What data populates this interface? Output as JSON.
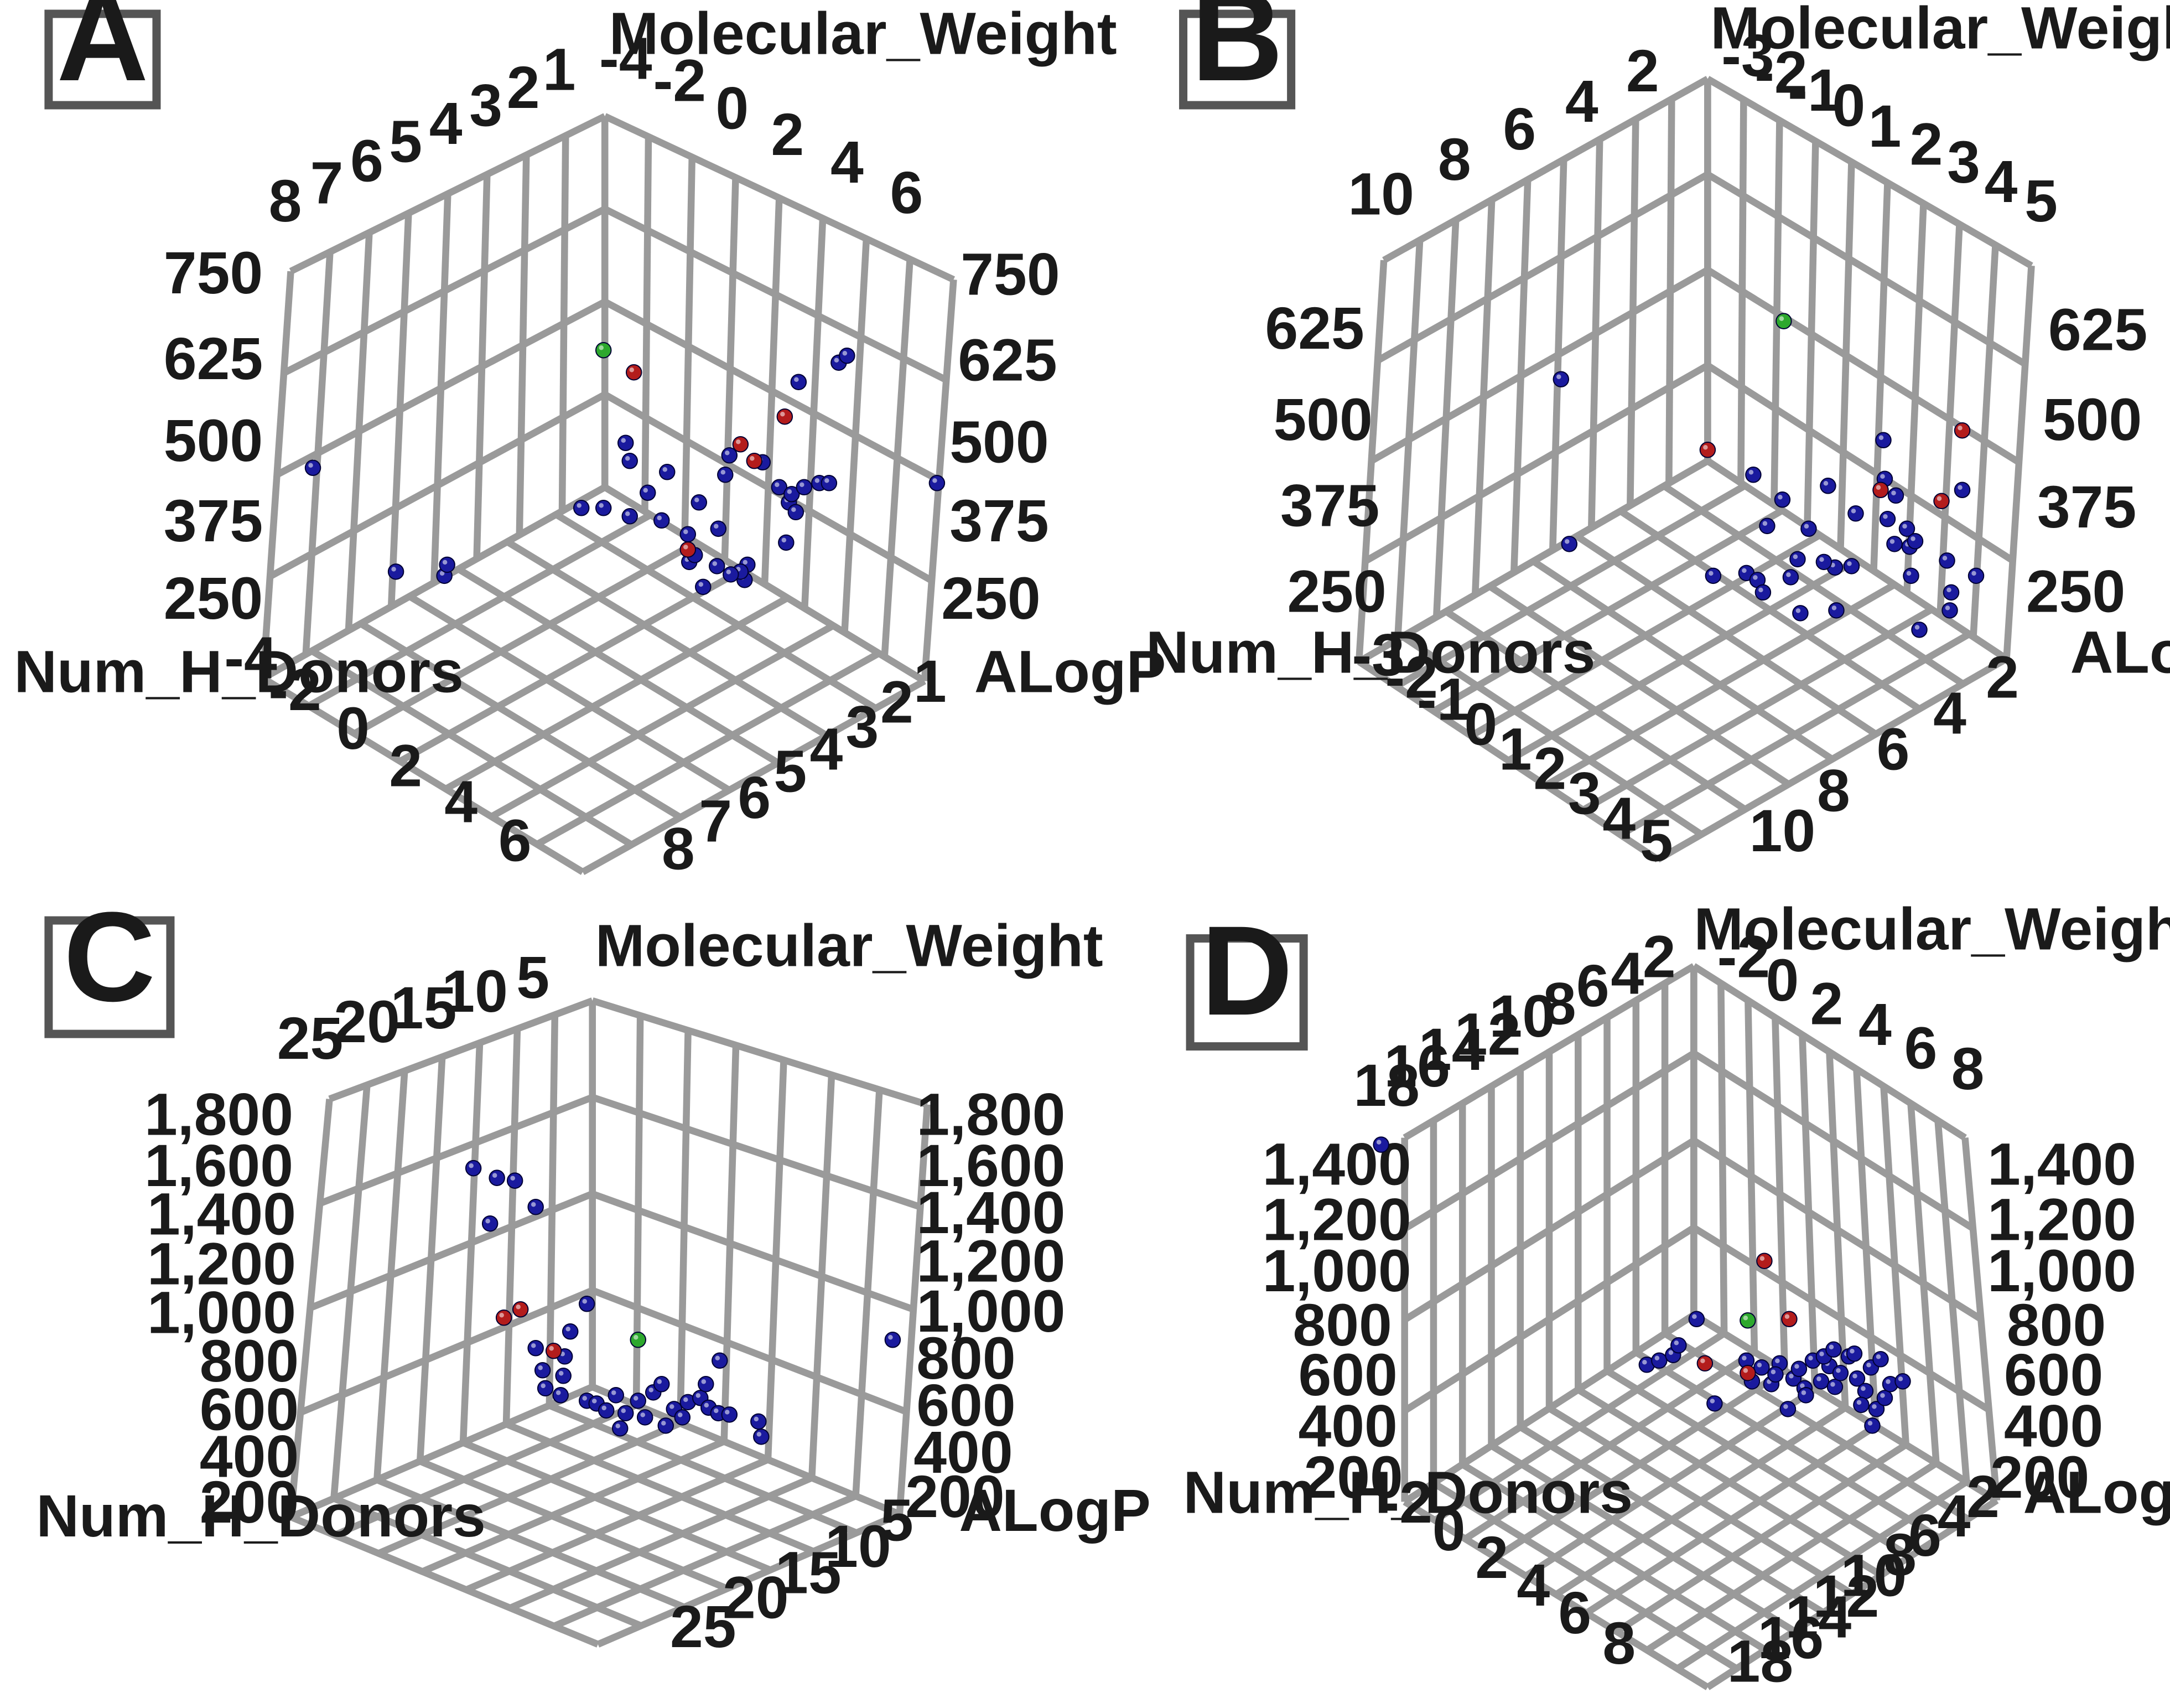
{
  "chart_data": [
    {
      "type": "scatter",
      "panel": "A",
      "axes": {
        "x": "Num_H_Donors",
        "y": "ALogP",
        "z": "Molecular_Weight"
      },
      "ticks": {
        "vertical": [
          "750",
          "625",
          "500",
          "375",
          "250"
        ],
        "left_depth": [
          "8",
          "7",
          "6",
          "5",
          "4",
          "3",
          "2",
          "1"
        ],
        "right_depth": [
          "-4",
          "-2",
          "0",
          "2",
          "4",
          "6"
        ],
        "front_left": [
          "-4",
          "-2",
          "0",
          "2",
          "4",
          "6"
        ],
        "front_right": [
          "1",
          "2",
          "3",
          "4",
          "5",
          "6",
          "7",
          "8"
        ]
      },
      "series": [
        {
          "color": "#1a1a9e",
          "points": [
            [
              226,
              338
            ],
            [
              286,
              413
            ],
            [
              321,
              416
            ],
            [
              323,
              408
            ],
            [
              452,
              320
            ],
            [
              455,
              333
            ],
            [
              436,
              367
            ],
            [
              420,
              367
            ],
            [
              455,
              373
            ],
            [
              468,
              356
            ],
            [
              482,
              341
            ],
            [
              478,
              376
            ],
            [
              497,
              386
            ],
            [
              505,
              363
            ],
            [
              498,
              406
            ],
            [
              508,
              424
            ],
            [
              519,
              382
            ],
            [
              524,
              343
            ],
            [
              527,
              329
            ],
            [
              540,
              408
            ],
            [
              538,
              419
            ],
            [
              535,
              413
            ],
            [
              551,
              334
            ],
            [
              563,
              352
            ],
            [
              570,
              363
            ],
            [
              572,
              357
            ],
            [
              575,
              370
            ],
            [
              568,
              392
            ],
            [
              581,
              352
            ],
            [
              592,
              349
            ],
            [
              599,
              349
            ],
            [
              577,
              276
            ],
            [
              606,
              262
            ],
            [
              612,
              257
            ],
            [
              677,
              349
            ],
            [
              502,
              401
            ],
            [
              528,
              415
            ],
            [
              518,
              409
            ]
          ]
        },
        {
          "color": "#b31c1c",
          "points": [
            [
              458,
              269
            ],
            [
              567,
              301
            ],
            [
              535,
              321
            ],
            [
              545,
              333
            ],
            [
              497,
              397
            ]
          ]
        },
        {
          "color": "#2da82d",
          "points": [
            [
              436,
              253
            ]
          ]
        }
      ]
    },
    {
      "type": "scatter",
      "panel": "B",
      "axes": {
        "x": "Num_H_Donors",
        "y": "ALogP",
        "z": "Molecular_Weight"
      },
      "ticks": {
        "vertical": [
          "625",
          "500",
          "375",
          "250"
        ],
        "left_depth": [
          "10",
          "8",
          "6",
          "4",
          "2"
        ],
        "right_depth": [
          "-3",
          "-2",
          "-1",
          "0",
          "1",
          "2",
          "3",
          "4",
          "5"
        ],
        "front_left": [
          "-3",
          "-2",
          "-1",
          "0",
          "1",
          "2",
          "3",
          "4",
          "5"
        ],
        "front_right": [
          "2",
          "4",
          "6",
          "8",
          "10"
        ]
      },
      "series": [
        {
          "color": "#1a1a9e",
          "points": [
            [
              1128,
              274
            ],
            [
              1134,
              393
            ],
            [
              1267,
              343
            ],
            [
              1277,
              380
            ],
            [
              1238,
              416
            ],
            [
              1262,
              414
            ],
            [
              1270,
              419
            ],
            [
              1274,
              428
            ],
            [
              1294,
              417
            ],
            [
              1299,
              404
            ],
            [
              1288,
              361
            ],
            [
              1301,
              443
            ],
            [
              1307,
              382
            ],
            [
              1321,
              351
            ],
            [
              1326,
              410
            ],
            [
              1327,
              441
            ],
            [
              1318,
              406
            ],
            [
              1338,
              409
            ],
            [
              1341,
              371
            ],
            [
              1361,
              318
            ],
            [
              1362,
              346
            ],
            [
              1364,
              375
            ],
            [
              1369,
              393
            ],
            [
              1370,
              358
            ],
            [
              1378,
              382
            ],
            [
              1380,
              395
            ],
            [
              1381,
              416
            ],
            [
              1384,
              391
            ],
            [
              1387,
              455
            ],
            [
              1407,
              405
            ],
            [
              1409,
              441
            ],
            [
              1410,
              428
            ],
            [
              1418,
              354
            ],
            [
              1428,
              416
            ]
          ]
        },
        {
          "color": "#b31c1c",
          "points": [
            [
              1234,
              325
            ],
            [
              1359,
              354
            ],
            [
              1403,
              362
            ],
            [
              1418,
              311
            ]
          ]
        },
        {
          "color": "#2da82d",
          "points": [
            [
              1289,
              232
            ]
          ]
        }
      ]
    },
    {
      "type": "scatter",
      "panel": "C",
      "axes": {
        "x": "Num_H_Donors",
        "y": "ALogP",
        "z": "Molecular_Weight"
      },
      "ticks": {
        "vertical": [
          "1,800",
          "1,600",
          "1,400",
          "1,200",
          "1,000",
          "800",
          "600",
          "400",
          "200"
        ],
        "left_depth": [
          "25",
          "20",
          "15",
          "10",
          "5"
        ],
        "right_depth": [],
        "front_left": [],
        "front_right": [
          "5",
          "10",
          "15",
          "20",
          "25"
        ]
      },
      "series": [
        {
          "color": "#1a1a9e",
          "points": [
            [
              342,
              844
            ],
            [
              359,
              851
            ],
            [
              372,
              853
            ],
            [
              354,
              884
            ],
            [
              387,
              872
            ],
            [
              424,
              942
            ],
            [
              412,
              962
            ],
            [
              408,
              980
            ],
            [
              387,
              974
            ],
            [
              392,
              990
            ],
            [
              394,
              1003
            ],
            [
              407,
              994
            ],
            [
              405,
              1008
            ],
            [
              424,
              1012
            ],
            [
              431,
              1014
            ],
            [
              438,
              1019
            ],
            [
              448,
              1032
            ],
            [
              452,
              1021
            ],
            [
              445,
              1008
            ],
            [
              461,
              1012
            ],
            [
              466,
              1024
            ],
            [
              472,
              1006
            ],
            [
              478,
              1000
            ],
            [
              481,
              1030
            ],
            [
              487,
              1018
            ],
            [
              493,
              1024
            ],
            [
              497,
              1013
            ],
            [
              506,
              1010
            ],
            [
              510,
              1000
            ],
            [
              512,
              1017
            ],
            [
              519,
              1021
            ],
            [
              527,
              1022
            ],
            [
              520,
              983
            ],
            [
              548,
              1027
            ],
            [
              550,
              1038
            ],
            [
              645,
              968
            ]
          ]
        },
        {
          "color": "#b31c1c",
          "points": [
            [
              364,
              952
            ],
            [
              376,
              946
            ],
            [
              400,
              976
            ]
          ]
        },
        {
          "color": "#2da82d",
          "points": [
            [
              461,
              968
            ]
          ]
        }
      ]
    },
    {
      "type": "scatter",
      "panel": "D",
      "axes": {
        "x": "Num_H_Donors",
        "y": "ALogP",
        "z": "Molecular_Weight"
      },
      "ticks": {
        "vertical": [
          "1,400",
          "1,200",
          "1,000",
          "800",
          "600",
          "400",
          "200"
        ],
        "left_depth": [
          "18",
          "16",
          "14",
          "12",
          "10",
          "8",
          "6",
          "4",
          "2"
        ],
        "right_depth": [
          "-2",
          "0",
          "2",
          "4",
          "6",
          "8"
        ],
        "front_left": [
          "-2",
          "0",
          "2",
          "4",
          "6",
          "8"
        ],
        "front_right": [
          "2",
          "4",
          "6",
          "8",
          "10",
          "12",
          "14",
          "16",
          "18"
        ]
      },
      "series": [
        {
          "color": "#1a1a9e",
          "points": [
            [
              998,
              827
            ],
            [
              1190,
              986
            ],
            [
              1199,
              983
            ],
            [
              1209,
              979
            ],
            [
              1213,
              972
            ],
            [
              1226,
              953
            ],
            [
              1239,
              1014
            ],
            [
              1262,
              983
            ],
            [
              1266,
              998
            ],
            [
              1273,
              988
            ],
            [
              1280,
              1000
            ],
            [
              1286,
              985
            ],
            [
              1292,
              1018
            ],
            [
              1296,
              996
            ],
            [
              1300,
              989
            ],
            [
              1304,
              1003
            ],
            [
              1310,
              983
            ],
            [
              1316,
              998
            ],
            [
              1322,
              987
            ],
            [
              1326,
              1002
            ],
            [
              1330,
              992
            ],
            [
              1336,
              980
            ],
            [
              1342,
              996
            ],
            [
              1348,
              1005
            ],
            [
              1352,
              988
            ],
            [
              1356,
              1018
            ],
            [
              1359,
              982
            ],
            [
              1362,
              1010
            ],
            [
              1366,
              1000
            ],
            [
              1375,
              998
            ],
            [
              1305,
              1008
            ],
            [
              1318,
              980
            ],
            [
              1345,
              1015
            ],
            [
              1353,
              1030
            ],
            [
              1340,
              978
            ],
            [
              1283,
              993
            ],
            [
              1325,
              975
            ]
          ]
        },
        {
          "color": "#b31c1c",
          "points": [
            [
              1275,
              911
            ],
            [
              1293,
              953
            ],
            [
              1232,
              985
            ],
            [
              1263,
              992
            ]
          ]
        },
        {
          "color": "#2da82d",
          "points": [
            [
              1263,
              954
            ]
          ]
        }
      ]
    }
  ]
}
